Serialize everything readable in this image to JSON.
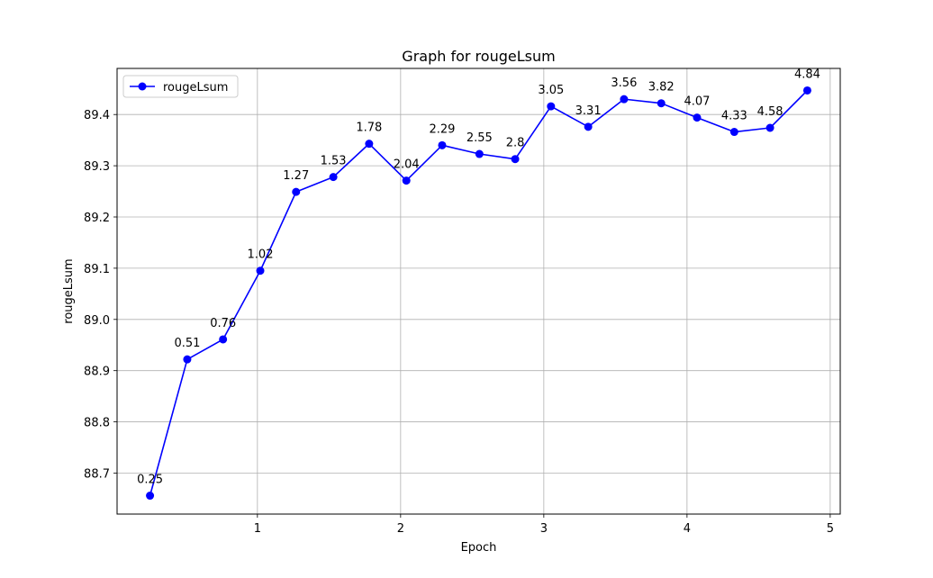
{
  "chart_data": {
    "type": "line",
    "title": "Graph for rougeLsum",
    "xlabel": "Epoch",
    "ylabel": "rougeLsum",
    "xlim": [
      0.02,
      5.07
    ],
    "ylim": [
      88.62,
      89.49
    ],
    "xticks": [
      1,
      2,
      3,
      4,
      5
    ],
    "yticks": [
      88.7,
      88.8,
      88.9,
      89.0,
      89.1,
      89.2,
      89.3,
      89.4
    ],
    "ytick_labels": [
      "88.7",
      "88.8",
      "88.9",
      "89.0",
      "89.1",
      "89.2",
      "89.3",
      "89.4"
    ],
    "grid": true,
    "legend_position": "top-left",
    "series": [
      {
        "name": "rougeLsum",
        "color": "#0000ff",
        "marker": "circle",
        "x": [
          0.25,
          0.51,
          0.76,
          1.02,
          1.27,
          1.53,
          1.78,
          2.04,
          2.29,
          2.55,
          2.8,
          3.05,
          3.31,
          3.56,
          3.82,
          4.07,
          4.33,
          4.58,
          4.84
        ],
        "y": [
          88.656,
          88.922,
          88.961,
          89.095,
          89.249,
          89.278,
          89.343,
          89.271,
          89.34,
          89.323,
          89.313,
          89.416,
          89.376,
          89.43,
          89.422,
          89.394,
          89.366,
          89.374,
          89.447
        ],
        "point_labels": [
          "0.25",
          "0.51",
          "0.76",
          "1.02",
          "1.27",
          "1.53",
          "1.78",
          "2.04",
          "2.29",
          "2.55",
          "2.8",
          "3.05",
          "3.31",
          "3.56",
          "3.82",
          "4.07",
          "4.33",
          "4.58",
          "4.84"
        ]
      }
    ]
  }
}
